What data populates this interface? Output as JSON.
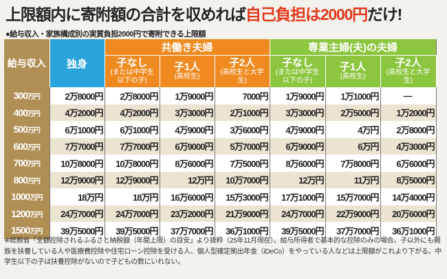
{
  "title": {
    "main": "上限額内に寄附額の合計を収めれば",
    "highlight": "自己負担は2000円",
    "end": "だけ!"
  },
  "subtitle": "●給与収入・家族構成別の実質負担2000円で寄附できる上限額",
  "colors": {
    "income": "#b08f55",
    "single": "#2aa3db",
    "dual": "#ef8a21",
    "single_earner": "#8cc63f",
    "highlight": "#e03a1e"
  },
  "table": {
    "income_header": "給与収入",
    "single_header": "独身",
    "groups": [
      {
        "label": "共働き夫婦",
        "cols": [
          {
            "label": "子なし",
            "note": "(または中学生以下の子)"
          },
          {
            "label": "子1人",
            "note": "(高校生)"
          },
          {
            "label": "子2人",
            "note": "(高校生と大学生)"
          }
        ]
      },
      {
        "label": "専業主婦(夫)の夫婦",
        "cols": [
          {
            "label": "子なし",
            "note": "(または中学生以下の子)"
          },
          {
            "label": "子1人",
            "note": "(高校生)"
          },
          {
            "label": "子2人",
            "note": "(高校生と大学生)"
          }
        ]
      }
    ],
    "unit": "万円",
    "rows": [
      {
        "income": "300",
        "values": [
          "2万8000円",
          "2万8000円",
          "1万9000円",
          "7000円",
          "1万9000円",
          "1万1000円",
          "—"
        ]
      },
      {
        "income": "400",
        "values": [
          "4万2000円",
          "4万2000円",
          "3万3000円",
          "2万1000円",
          "3万3000円",
          "2万5000円",
          "1万2000円"
        ]
      },
      {
        "income": "500",
        "values": [
          "6万1000円",
          "6万1000円",
          "4万9000円",
          "3万6000円",
          "4万9000円",
          "4万円",
          "2万8000円"
        ]
      },
      {
        "income": "600",
        "values": [
          "7万7000円",
          "7万7000円",
          "6万9000円",
          "5万7000円",
          "6万9000円",
          "6万円",
          "4万3000円"
        ]
      },
      {
        "income": "700",
        "values": [
          "10万8000円",
          "10万8000円",
          "8万6000円",
          "7万5000円",
          "8万6000円",
          "7万8000円",
          "6万6000円"
        ]
      },
      {
        "income": "800",
        "values": [
          "12万9000円",
          "12万9000円",
          "12万円",
          "10万7000円",
          "12万円",
          "11万円",
          "8万5000円"
        ]
      },
      {
        "income": "1000",
        "values": [
          "18万円",
          "18万円",
          "16万6000円",
          "15万3000円",
          "17万1000円",
          "15万7000円",
          "14万4000円"
        ]
      },
      {
        "income": "1200",
        "values": [
          "24万7000円",
          "24万7000円",
          "23万2000円",
          "21万9000円",
          "24万7000円",
          "22万9000円",
          "20万6000円"
        ]
      },
      {
        "income": "1500",
        "values": [
          "39万5000円",
          "39万5000円",
          "37万7000円",
          "36万1000円",
          "39万5000円",
          "37万7000円",
          "36万1000円"
        ]
      }
    ]
  },
  "footnote": "※総務省「全額控除されるふるさと納税額（年間上限）の目安」より抜粋（25年11月現在）。給与所得者で基本的な控除のみの場合。子以外にも親族を扶養している人や医療費控除や住宅ローン控除を受ける人、個人型確定拠出年金（iDeCo）をやっている人などは上限額がこれより下がる。中学生以下の子は扶養控除がないので子どもの数にいれない。"
}
